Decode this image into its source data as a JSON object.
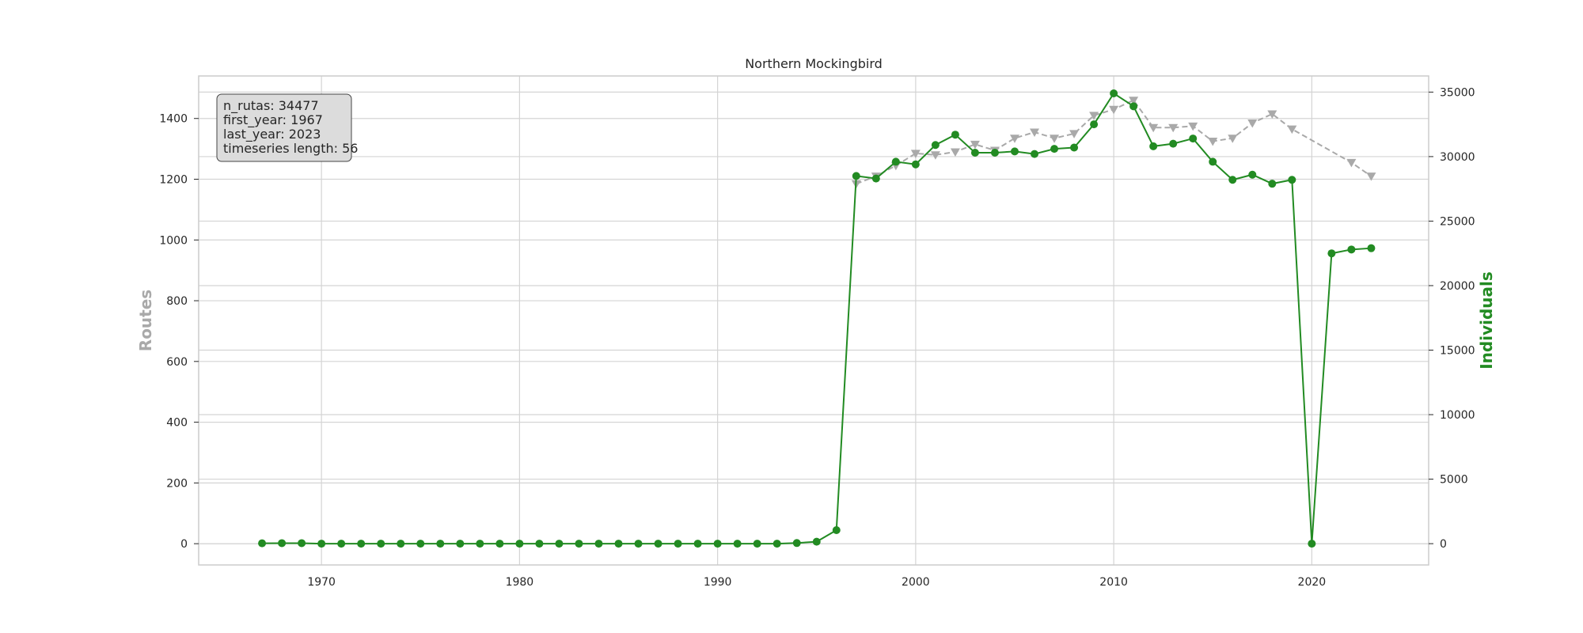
{
  "chart_data": {
    "type": "line",
    "title": "Northern Mockingbird",
    "xlabel": "",
    "ylabel_left": "Routes",
    "ylabel_right": "Individuals",
    "xlim": [
      1963.8,
      2025.9
    ],
    "ylim_left": [
      -70,
      1540
    ],
    "ylim_right": [
      -1650,
      36250
    ],
    "x_ticks": [
      1970,
      1980,
      1990,
      2000,
      2010,
      2020
    ],
    "y_ticks_left": [
      0,
      200,
      400,
      600,
      800,
      1000,
      1200,
      1400
    ],
    "y_ticks_right": [
      0,
      5000,
      10000,
      15000,
      20000,
      25000,
      30000,
      35000
    ],
    "grid": true,
    "colors": {
      "routes": "#a9a9a9",
      "individuals": "#228b22",
      "grid": "#d4d4d4",
      "frame": "#cccccc"
    },
    "series": [
      {
        "axis": "left",
        "marker": "triangle-down",
        "style": "dashed",
        "x": [
          1997,
          1998,
          1999,
          2000,
          2001,
          2002,
          2003,
          2004,
          2005,
          2006,
          2007,
          2008,
          2009,
          2010,
          2011,
          2012,
          2013,
          2014,
          2015,
          2016,
          2017,
          2018,
          2019,
          2022,
          2023
        ],
        "values": [
          1185,
          1210,
          1245,
          1285,
          1280,
          1290,
          1315,
          1295,
          1335,
          1355,
          1335,
          1350,
          1410,
          1430,
          1460,
          1370,
          1370,
          1375,
          1325,
          1335,
          1385,
          1415,
          1365,
          1255,
          1210
        ]
      },
      {
        "axis": "right",
        "marker": "circle",
        "style": "solid",
        "x": [
          1967,
          1968,
          1969,
          1970,
          1971,
          1972,
          1973,
          1974,
          1975,
          1976,
          1977,
          1978,
          1979,
          1980,
          1981,
          1982,
          1983,
          1984,
          1985,
          1986,
          1987,
          1988,
          1989,
          1990,
          1991,
          1992,
          1993,
          1994,
          1995,
          1996,
          1997,
          1998,
          1999,
          2000,
          2001,
          2002,
          2003,
          2004,
          2005,
          2006,
          2007,
          2008,
          2009,
          2010,
          2011,
          2012,
          2013,
          2014,
          2015,
          2016,
          2017,
          2018,
          2019,
          2020,
          2021,
          2022,
          2023
        ],
        "values": [
          30,
          40,
          40,
          0,
          0,
          0,
          0,
          0,
          0,
          0,
          0,
          0,
          0,
          0,
          0,
          0,
          0,
          0,
          0,
          0,
          0,
          0,
          0,
          0,
          0,
          0,
          0,
          50,
          150,
          1050,
          28500,
          28300,
          29600,
          29400,
          30900,
          31700,
          30300,
          30300,
          30400,
          30200,
          30600,
          30700,
          32500,
          34900,
          33900,
          30800,
          31000,
          31400,
          29600,
          28200,
          28600,
          27900,
          28200,
          0,
          22500,
          22800,
          22900
        ]
      }
    ],
    "infobox": {
      "lines": [
        "n_rutas: 34477",
        "first_year: 1967",
        "last_year: 2023",
        "timeseries length: 56"
      ]
    }
  }
}
